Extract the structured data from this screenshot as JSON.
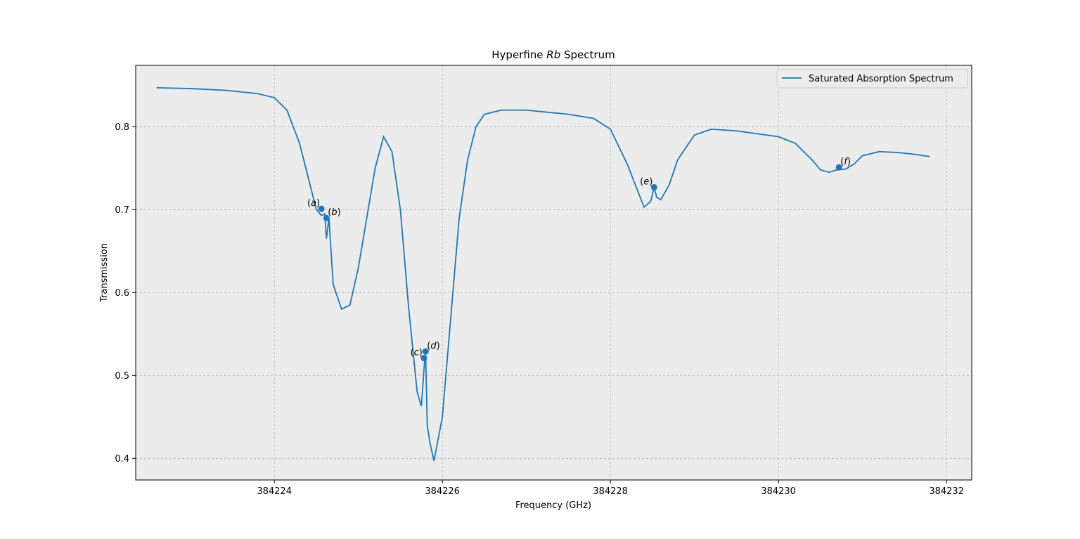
{
  "chart_data": {
    "type": "line",
    "title": "Hyperfine Rb Spectrum",
    "title_prefix": "Hyperfine ",
    "title_italic": "Rb",
    "title_suffix": " Spectrum",
    "xlabel": "Frequency (GHz)",
    "ylabel": "Transmission",
    "xlim": [
      384222.35,
      384232.3
    ],
    "ylim": [
      0.374,
      0.874
    ],
    "xticks": [
      384224,
      384226,
      384228,
      384230,
      384232
    ],
    "xtick_labels": [
      "384224",
      "384226",
      "384228",
      "384230",
      "384232"
    ],
    "yticks": [
      0.4,
      0.5,
      0.6,
      0.7,
      0.8
    ],
    "ytick_labels": [
      "0.4",
      "0.5",
      "0.6",
      "0.7",
      "0.8"
    ],
    "grid": true,
    "legend_placement": "top-right",
    "series": [
      {
        "name": "Saturated Absorption Spectrum",
        "color": "#1f77b4",
        "x": [
          384222.6,
          384223.0,
          384223.4,
          384223.8,
          384224.0,
          384224.15,
          384224.3,
          384224.4,
          384224.5,
          384224.56,
          384224.6,
          384224.62,
          384224.65,
          384224.7,
          384224.8,
          384224.9,
          384225.0,
          384225.1,
          384225.2,
          384225.3,
          384225.4,
          384225.5,
          384225.6,
          384225.7,
          384225.75,
          384225.79,
          384225.8,
          384225.82,
          384225.85,
          384225.9,
          384226.0,
          384226.1,
          384226.2,
          384226.3,
          384226.4,
          384226.5,
          384226.7,
          384227.0,
          384227.5,
          384227.8,
          384228.0,
          384228.2,
          384228.4,
          384228.48,
          384228.52,
          384228.55,
          384228.6,
          384228.7,
          384228.8,
          384229.0,
          384229.2,
          384229.5,
          384230.0,
          384230.2,
          384230.4,
          384230.5,
          384230.6,
          384230.7,
          384230.8,
          384230.9,
          384231.0,
          384231.2,
          384231.4,
          384231.6,
          384231.8
        ],
        "y": [
          0.847,
          0.846,
          0.844,
          0.84,
          0.835,
          0.82,
          0.78,
          0.74,
          0.7,
          0.693,
          0.695,
          0.665,
          0.69,
          0.61,
          0.58,
          0.585,
          0.63,
          0.69,
          0.75,
          0.788,
          0.77,
          0.7,
          0.58,
          0.48,
          0.463,
          0.52,
          0.53,
          0.44,
          0.42,
          0.397,
          0.45,
          0.57,
          0.69,
          0.76,
          0.8,
          0.815,
          0.82,
          0.82,
          0.815,
          0.81,
          0.797,
          0.755,
          0.703,
          0.71,
          0.727,
          0.715,
          0.712,
          0.73,
          0.76,
          0.79,
          0.797,
          0.795,
          0.788,
          0.78,
          0.76,
          0.748,
          0.745,
          0.748,
          0.749,
          0.755,
          0.765,
          0.77,
          0.769,
          0.767,
          0.764
        ]
      }
    ],
    "markers": [
      {
        "label": "(a)",
        "letter": "a",
        "x": 384224.56,
        "y": 0.701,
        "placement": "left"
      },
      {
        "label": "(b)",
        "letter": "b",
        "x": 384224.62,
        "y": 0.69,
        "placement": "right"
      },
      {
        "label": "(c)",
        "letter": "c",
        "x": 384225.78,
        "y": 0.521,
        "placement": "left"
      },
      {
        "label": "(d)",
        "letter": "d",
        "x": 384225.8,
        "y": 0.529,
        "placement": "right"
      },
      {
        "label": "(e)",
        "letter": "e",
        "x": 384228.52,
        "y": 0.727,
        "placement": "left"
      },
      {
        "label": "(f)",
        "letter": "f",
        "x": 384230.72,
        "y": 0.751,
        "placement": "right"
      }
    ],
    "colors": {
      "plot_background": "#ececec",
      "line": "#1f77b4",
      "grid": "#b0b0b0"
    }
  }
}
